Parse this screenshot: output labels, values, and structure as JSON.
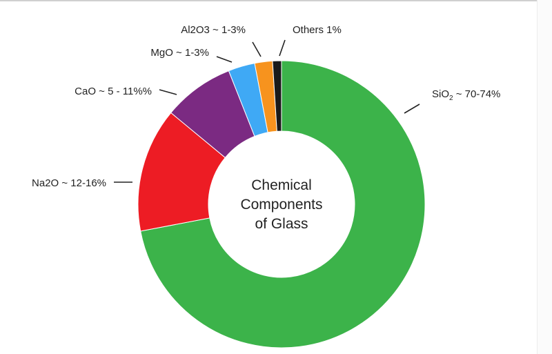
{
  "chart_data": {
    "type": "pie",
    "donut": true,
    "title_lines": [
      "Chemical",
      "Components",
      "of Glass"
    ],
    "slices": [
      {
        "label": "SiO",
        "subscript": "2",
        "suffix": " ~ 70-74%",
        "value": 72,
        "color": "#3cb34a"
      },
      {
        "label": "Na2O ~ 12-16%",
        "value": 14,
        "color": "#ed1c24"
      },
      {
        "label": "CaO ~ 5 - 11%%",
        "value": 8,
        "color": "#7b2a82"
      },
      {
        "label": "MgO ~ 1-3%",
        "value": 3,
        "color": "#3fa9f5"
      },
      {
        "label": "Al2O3 ~ 1-3%",
        "value": 2,
        "color": "#f7931e"
      },
      {
        "label": "Others 1%",
        "value": 1,
        "color": "#1a1a1a"
      }
    ],
    "legend": "none"
  }
}
